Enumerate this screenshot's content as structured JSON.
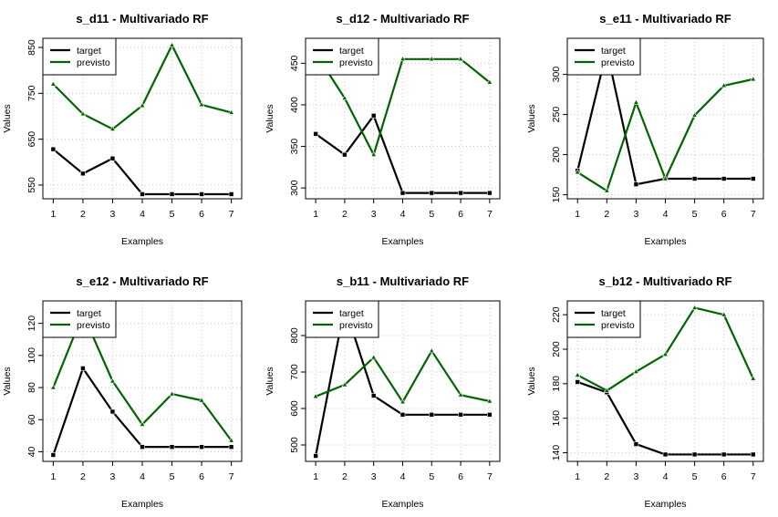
{
  "figure": {
    "background": "#ffffff",
    "colors": {
      "target": "#000000",
      "previsto": "#006400",
      "grid": "#c8c8c8",
      "axis": "#000000"
    },
    "grid": "dotted",
    "legend_position": "top-left"
  },
  "chart_data": [
    {
      "type": "line",
      "title": "s_d11 - Multivariado RF",
      "xlabel": "Examples",
      "ylabel": "Values",
      "x": [
        1,
        2,
        3,
        4,
        5,
        6,
        7
      ],
      "xlim": [
        0.65,
        7.35
      ],
      "ylim": [
        520,
        870
      ],
      "yticks": [
        550,
        650,
        750,
        850
      ],
      "series": [
        {
          "name": "target",
          "values": [
            628,
            575,
            608,
            530,
            530,
            530,
            530
          ]
        },
        {
          "name": "previsto",
          "values": [
            770,
            705,
            672,
            723,
            855,
            725,
            708
          ]
        }
      ]
    },
    {
      "type": "line",
      "title": "s_d12 - Multivariado RF",
      "xlabel": "Examples",
      "ylabel": "Values",
      "x": [
        1,
        2,
        3,
        4,
        5,
        6,
        7
      ],
      "xlim": [
        0.65,
        7.35
      ],
      "ylim": [
        287,
        480
      ],
      "yticks": [
        300,
        350,
        400,
        450
      ],
      "series": [
        {
          "name": "target",
          "values": [
            365,
            340,
            387,
            294,
            294,
            294,
            294
          ]
        },
        {
          "name": "previsto",
          "values": [
            462,
            408,
            340,
            455,
            455,
            455,
            427
          ]
        }
      ]
    },
    {
      "type": "line",
      "title": "s_e11 - Multivariado RF",
      "xlabel": "Examples",
      "ylabel": "Values",
      "x": [
        1,
        2,
        3,
        4,
        5,
        6,
        7
      ],
      "xlim": [
        0.65,
        7.35
      ],
      "ylim": [
        145,
        345
      ],
      "yticks": [
        150,
        200,
        250,
        300
      ],
      "series": [
        {
          "name": "target",
          "values": [
            180,
            330,
            163,
            170,
            170,
            170,
            170
          ]
        },
        {
          "name": "previsto",
          "values": [
            178,
            155,
            265,
            170,
            249,
            286,
            294
          ]
        }
      ]
    },
    {
      "type": "line",
      "title": "s_e12 - Multivariado RF",
      "xlabel": "Examples",
      "ylabel": "Values",
      "x": [
        1,
        2,
        3,
        4,
        5,
        6,
        7
      ],
      "xlim": [
        0.65,
        7.35
      ],
      "ylim": [
        34,
        134
      ],
      "yticks": [
        40,
        60,
        80,
        100,
        120
      ],
      "series": [
        {
          "name": "target",
          "values": [
            38,
            92,
            65,
            43,
            43,
            43,
            43
          ]
        },
        {
          "name": "previsto",
          "values": [
            80,
            126,
            84,
            57,
            76,
            72,
            47
          ]
        }
      ]
    },
    {
      "type": "line",
      "title": "s_b11 - Multivariado RF",
      "xlabel": "Examples",
      "ylabel": "Values",
      "x": [
        1,
        2,
        3,
        4,
        5,
        6,
        7
      ],
      "xlim": [
        0.65,
        7.35
      ],
      "ylim": [
        455,
        895
      ],
      "yticks": [
        500,
        600,
        700,
        800
      ],
      "series": [
        {
          "name": "target",
          "values": [
            470,
            880,
            635,
            583,
            583,
            583,
            583
          ]
        },
        {
          "name": "previsto",
          "values": [
            633,
            665,
            740,
            618,
            758,
            637,
            620
          ]
        }
      ]
    },
    {
      "type": "line",
      "title": "s_b12 - Multivariado RF",
      "xlabel": "Examples",
      "ylabel": "Values",
      "x": [
        1,
        2,
        3,
        4,
        5,
        6,
        7
      ],
      "xlim": [
        0.65,
        7.35
      ],
      "ylim": [
        135,
        228
      ],
      "yticks": [
        140,
        160,
        180,
        200,
        220
      ],
      "series": [
        {
          "name": "target",
          "values": [
            181,
            175,
            145,
            139,
            139,
            139,
            139
          ]
        },
        {
          "name": "previsto",
          "values": [
            185,
            176,
            187,
            197,
            224,
            220,
            183
          ]
        }
      ]
    }
  ]
}
